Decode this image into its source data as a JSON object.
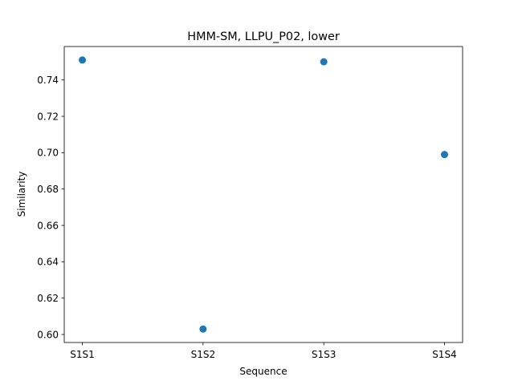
{
  "chart_data": {
    "type": "scatter",
    "title": "HMM-SM, LLPU_P02, lower",
    "xlabel": "Sequence",
    "ylabel": "Similarity",
    "categories": [
      "S1S1",
      "S1S2",
      "S1S3",
      "S1S4"
    ],
    "values": [
      0.751,
      0.603,
      0.75,
      0.699
    ],
    "ylim": [
      0.5956,
      0.7584
    ],
    "yticks": [
      "0.60",
      "0.62",
      "0.64",
      "0.66",
      "0.68",
      "0.70",
      "0.72",
      "0.74"
    ],
    "grid": false,
    "marker_color": "#1f77b4"
  }
}
